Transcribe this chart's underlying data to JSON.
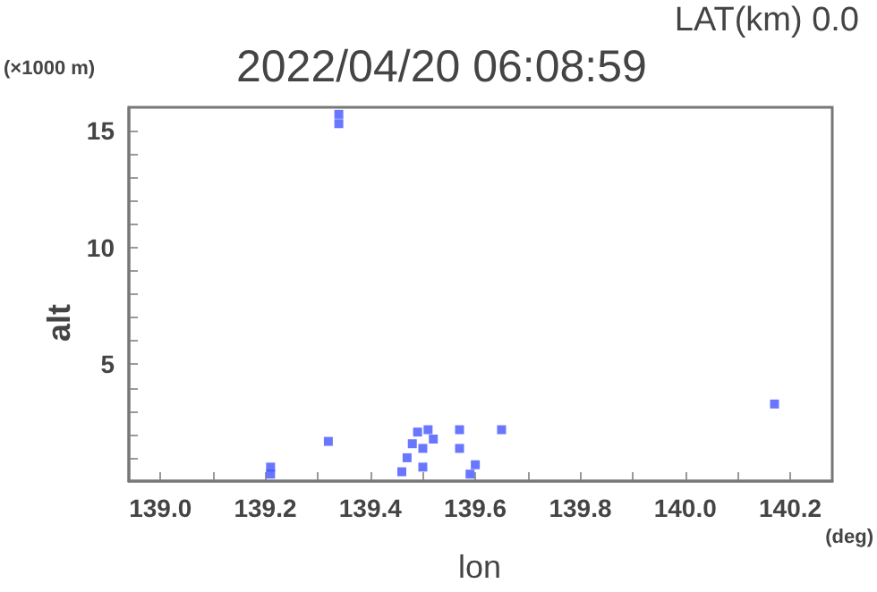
{
  "chart_data": {
    "type": "scatter",
    "title": "2022/04/20 06:08:59",
    "subtitle": "LAT(km) 0.0",
    "xlabel": "lon",
    "ylabel": "alt",
    "annotations": [
      "(×1000 m)",
      "(deg)"
    ],
    "x": [
      139.34,
      139.34,
      139.21,
      139.21,
      139.32,
      139.46,
      139.47,
      139.48,
      139.49,
      139.5,
      139.5,
      139.51,
      139.52,
      139.57,
      139.57,
      139.59,
      139.6,
      139.65,
      140.17
    ],
    "series": [
      {
        "color": "#4455ff",
        "values": [
          15.3,
          15.7,
          0.3,
          0.6,
          1.7,
          0.4,
          1.0,
          1.6,
          2.1,
          0.6,
          1.4,
          2.2,
          1.8,
          1.4,
          2.2,
          0.3,
          0.7,
          2.2,
          3.3
        ]
      }
    ],
    "xlim": [
      138.94,
      140.28
    ],
    "xticks": [
      {
        "value": 139.0,
        "label": "139.0"
      },
      {
        "value": 139.1,
        "label": null
      },
      {
        "value": 139.2,
        "label": "139.2"
      },
      {
        "value": 139.3,
        "label": null
      },
      {
        "value": 139.4,
        "label": "139.4"
      },
      {
        "value": 139.5,
        "label": null
      },
      {
        "value": 139.6,
        "label": "139.6"
      },
      {
        "value": 139.7,
        "label": null
      },
      {
        "value": 139.8,
        "label": "139.8"
      },
      {
        "value": 139.9,
        "label": null
      },
      {
        "value": 140.0,
        "label": "140.0"
      },
      {
        "value": 140.1,
        "label": null
      },
      {
        "value": 140.2,
        "label": "140.2"
      }
    ],
    "ylim": [
      0,
      16
    ],
    "yticks": [
      {
        "value": 1,
        "label": null
      },
      {
        "value": 2,
        "label": null
      },
      {
        "value": 3,
        "label": null
      },
      {
        "value": 4,
        "label": null
      },
      5,
      {
        "value": 6,
        "label": null
      },
      {
        "value": 7,
        "label": null
      },
      {
        "value": 8,
        "label": null
      },
      {
        "value": 9,
        "label": null
      },
      10,
      {
        "value": 11,
        "label": null
      },
      {
        "value": 12,
        "label": null
      },
      {
        "value": 13,
        "label": null
      },
      {
        "value": 14,
        "label": null
      },
      15
    ],
    "grid": false,
    "marker": "square"
  }
}
